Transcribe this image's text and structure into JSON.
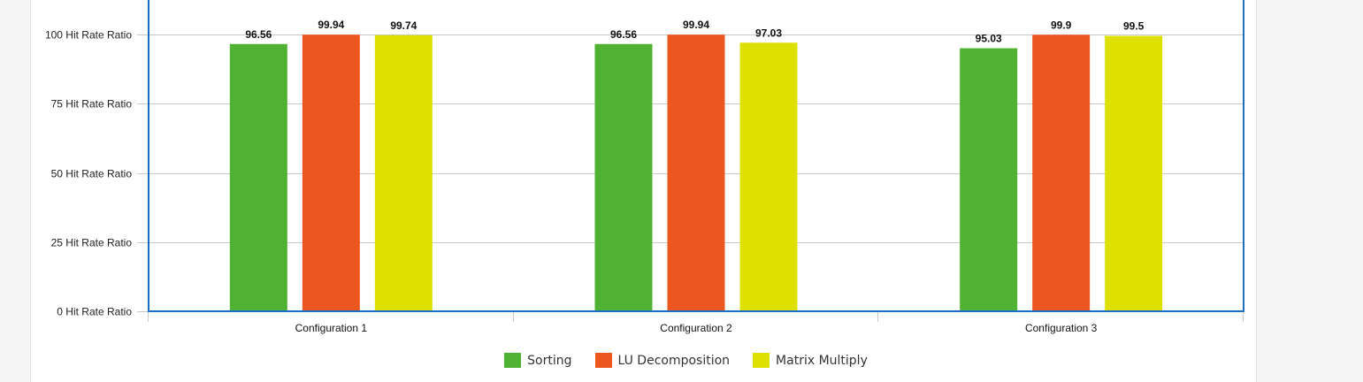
{
  "chart_data": {
    "type": "bar",
    "categories": [
      "Configuration 1",
      "Configuration 2",
      "Configuration 3"
    ],
    "series": [
      {
        "name": "Sorting",
        "color": "#4fb233",
        "values": [
          96.56,
          96.56,
          95.03
        ]
      },
      {
        "name": "LU Decomposition",
        "color": "#ec561f",
        "values": [
          99.94,
          99.94,
          99.9
        ]
      },
      {
        "name": "Matrix Multiply",
        "color": "#dde000",
        "values": [
          99.74,
          97.03,
          99.5
        ]
      }
    ],
    "ylim": [
      0,
      100
    ],
    "yticks": [
      0,
      25,
      50,
      75,
      100
    ],
    "ytick_labels": [
      "0 Hit Rate Ratio",
      "25 Hit Rate Ratio",
      "50 Hit Rate Ratio",
      "75 Hit Rate Ratio",
      "100 Hit Rate Ratio"
    ],
    "grid": true,
    "legend_position": "bottom"
  }
}
